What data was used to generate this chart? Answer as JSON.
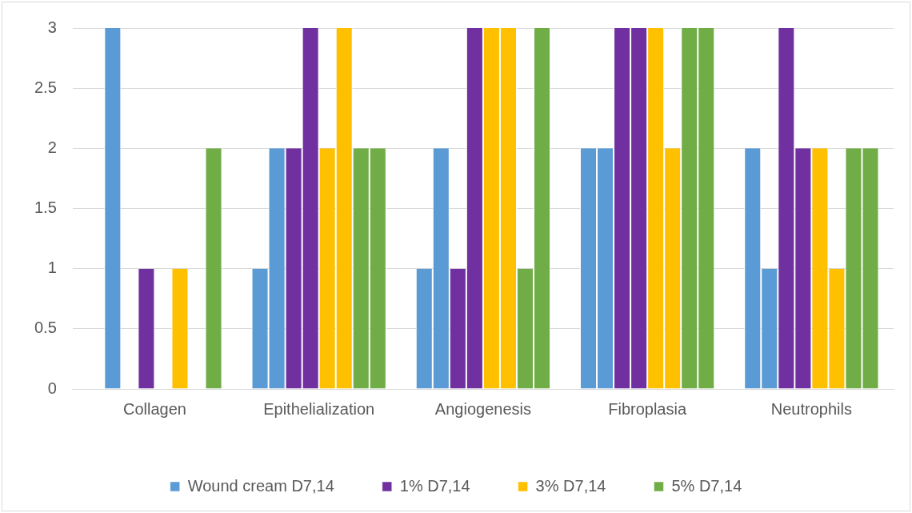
{
  "chart_data": {
    "type": "bar",
    "categories": [
      "Collagen",
      "Epithelialization",
      "Angiogenesis",
      "Fibroplasia",
      "Neutrophils"
    ],
    "series": [
      {
        "name": "Wound cream D7,14",
        "color": "#5b9bd5",
        "values": [
          0,
          1,
          1,
          2,
          2
        ]
      },
      {
        "color": "#5b9bd5",
        "values": [
          3,
          2,
          2,
          2,
          1
        ]
      },
      {
        "name": "1% D7,14",
        "color": "#7030a0",
        "values": [
          0,
          2,
          1,
          3,
          3
        ]
      },
      {
        "color": "#7030a0",
        "values": [
          1,
          3,
          3,
          3,
          2
        ]
      },
      {
        "name": "3% D7,14",
        "color": "#ffc000",
        "values": [
          0,
          2,
          3,
          3,
          2
        ]
      },
      {
        "color": "#ffc000",
        "values": [
          1,
          3,
          3,
          2,
          1
        ]
      },
      {
        "name": "5% D7,14",
        "color": "#70ad47",
        "values": [
          0,
          2,
          1,
          3,
          2
        ]
      },
      {
        "color": "#70ad47",
        "values": [
          2,
          2,
          3,
          3,
          2
        ]
      }
    ],
    "ylim": [
      0,
      3
    ],
    "yticks": [
      0,
      0.5,
      1,
      1.5,
      2,
      2.5,
      3
    ],
    "grid": "y",
    "legend": "bottom"
  }
}
